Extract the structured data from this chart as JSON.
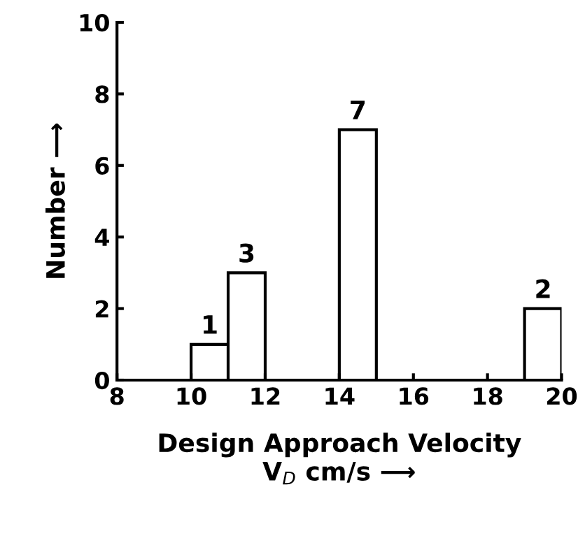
{
  "chart_data": {
    "type": "histogram",
    "xlabel": "Design Approach Velocity\nV$_{D}$ cm/s ⟶",
    "ylabel": "Number ⟶",
    "bins": [
      10,
      11,
      12,
      13,
      14,
      15,
      16,
      17,
      18,
      19,
      20
    ],
    "values": [
      1,
      3,
      0,
      0,
      7,
      0,
      0,
      0,
      0,
      2
    ],
    "value_labels": [
      "1",
      "3",
      null,
      null,
      "7",
      null,
      null,
      null,
      null,
      "2"
    ],
    "color": "#ffffff",
    "xlim": [
      8,
      20
    ],
    "xticks": [
      8,
      10,
      12,
      14,
      16,
      18,
      20
    ],
    "ylim": [
      0,
      10
    ],
    "yticks": [
      0,
      2,
      4,
      6,
      8,
      10
    ],
    "grid": false,
    "legend": false
  }
}
